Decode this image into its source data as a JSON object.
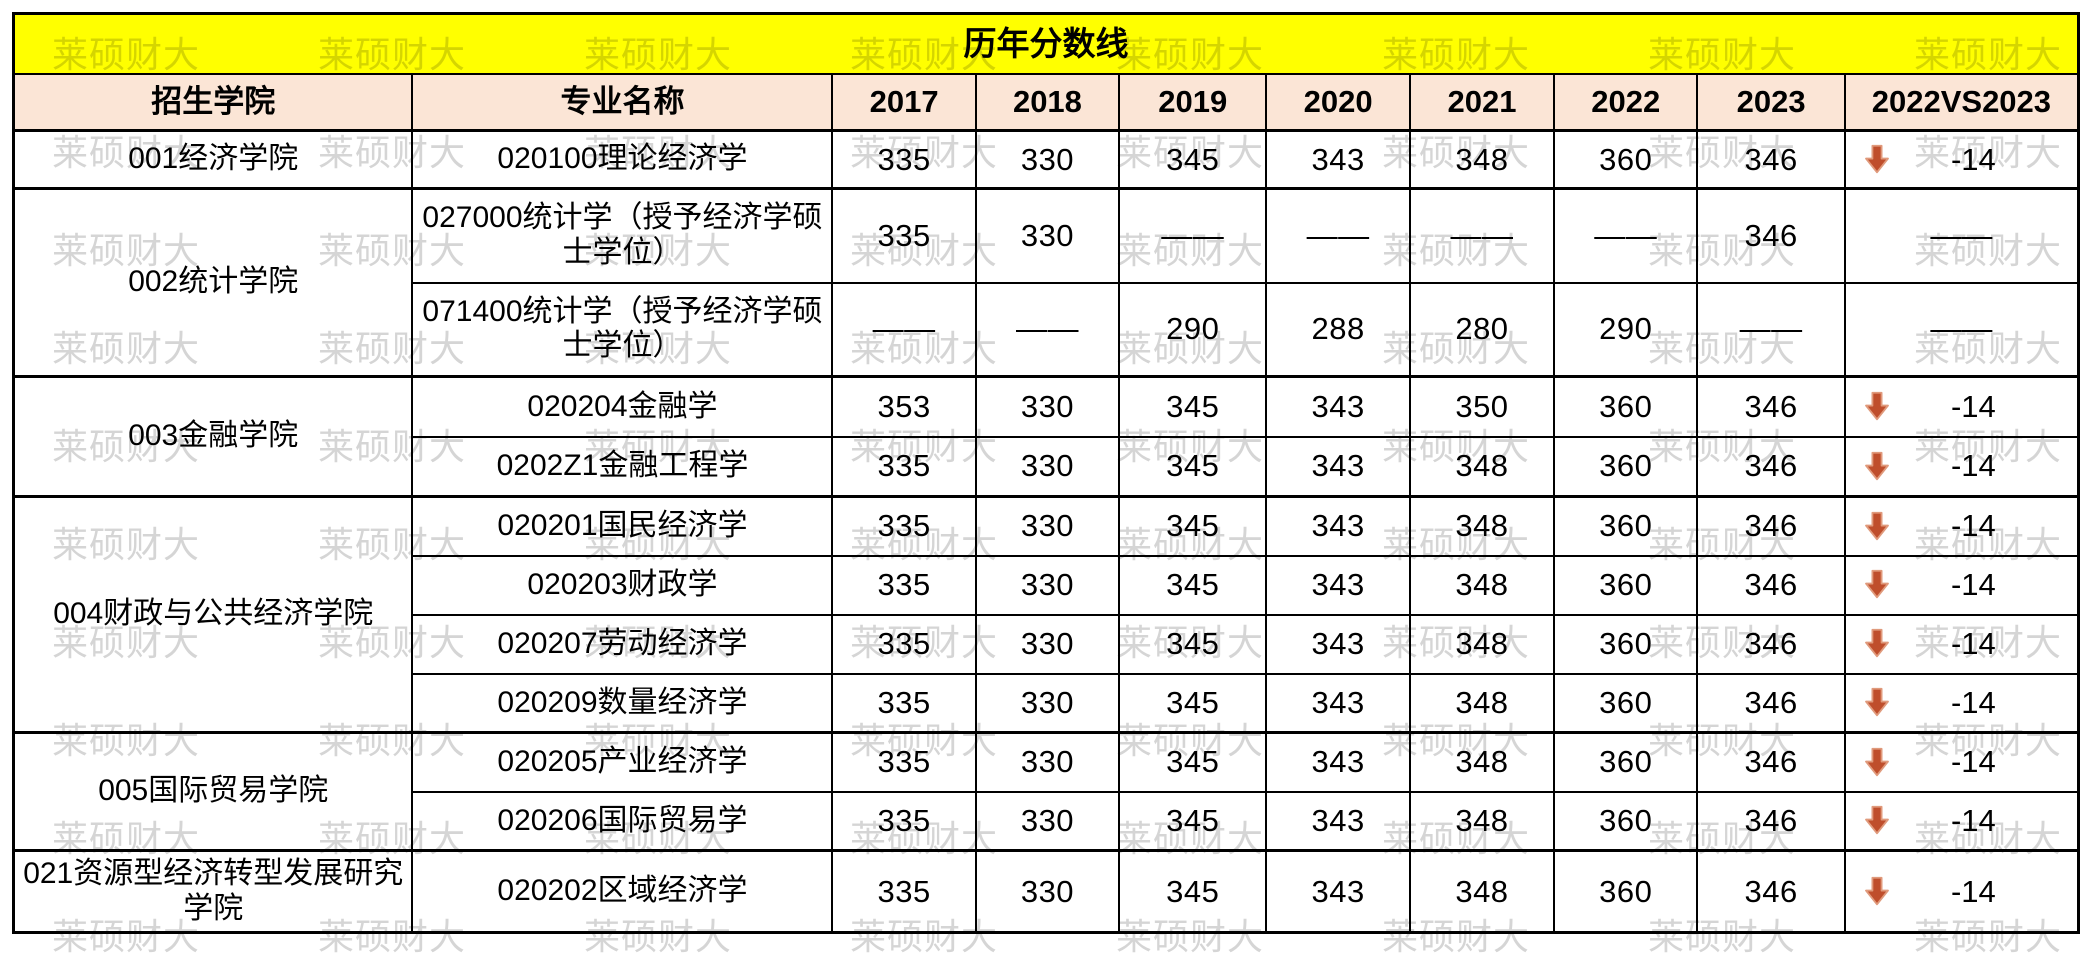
{
  "title": "历年分数线",
  "watermark_text": "莱硕财大",
  "colors": {
    "title_bg": "#ffff00",
    "header_bg": "#fbe5d6",
    "arrow_red": "#bf4e2c",
    "arrow_outline": "#e09a7c",
    "watermark_gray": "#d5d5d5",
    "border_black": "#000000"
  },
  "columns": [
    "招生学院",
    "专业名称",
    "2017",
    "2018",
    "2019",
    "2020",
    "2021",
    "2022",
    "2023",
    "2022VS2023"
  ],
  "empty_mark": "——",
  "sections": [
    {
      "college": "001经济学院",
      "majors": [
        {
          "name": "020100理论经济学",
          "scores": [
            "335",
            "330",
            "345",
            "343",
            "348",
            "360",
            "346"
          ],
          "vs_arrow": "down",
          "vs_value": "-14"
        }
      ]
    },
    {
      "college": "002统计学院",
      "majors": [
        {
          "name": "027000统计学（授予经济学硕士学位）",
          "scores": [
            "335",
            "330",
            "——",
            "——",
            "——",
            "——",
            "346"
          ],
          "vs_arrow": "",
          "vs_value": "——"
        },
        {
          "name": "071400统计学（授予经济学硕士学位）",
          "scores": [
            "——",
            "——",
            "290",
            "288",
            "280",
            "290",
            "——"
          ],
          "vs_arrow": "",
          "vs_value": "——"
        }
      ]
    },
    {
      "college": "003金融学院",
      "majors": [
        {
          "name": "020204金融学",
          "scores": [
            "353",
            "330",
            "345",
            "343",
            "350",
            "360",
            "346"
          ],
          "vs_arrow": "down",
          "vs_value": "-14"
        },
        {
          "name": "0202Z1金融工程学",
          "scores": [
            "335",
            "330",
            "345",
            "343",
            "348",
            "360",
            "346"
          ],
          "vs_arrow": "down",
          "vs_value": "-14"
        }
      ]
    },
    {
      "college": "004财政与公共经济学院",
      "majors": [
        {
          "name": "020201国民经济学",
          "scores": [
            "335",
            "330",
            "345",
            "343",
            "348",
            "360",
            "346"
          ],
          "vs_arrow": "down",
          "vs_value": "-14"
        },
        {
          "name": "020203财政学",
          "scores": [
            "335",
            "330",
            "345",
            "343",
            "348",
            "360",
            "346"
          ],
          "vs_arrow": "down",
          "vs_value": "-14"
        },
        {
          "name": "020207劳动经济学",
          "scores": [
            "335",
            "330",
            "345",
            "343",
            "348",
            "360",
            "346"
          ],
          "vs_arrow": "down",
          "vs_value": "-14"
        },
        {
          "name": "020209数量经济学",
          "scores": [
            "335",
            "330",
            "345",
            "343",
            "348",
            "360",
            "346"
          ],
          "vs_arrow": "down",
          "vs_value": "-14"
        }
      ]
    },
    {
      "college": "005国际贸易学院",
      "majors": [
        {
          "name": "020205产业经济学",
          "scores": [
            "335",
            "330",
            "345",
            "343",
            "348",
            "360",
            "346"
          ],
          "vs_arrow": "down",
          "vs_value": "-14"
        },
        {
          "name": "020206国际贸易学",
          "scores": [
            "335",
            "330",
            "345",
            "343",
            "348",
            "360",
            "346"
          ],
          "vs_arrow": "down",
          "vs_value": "-14"
        }
      ]
    },
    {
      "college": "021资源型经济转型发展研究学院",
      "majors": [
        {
          "name": "020202区域经济学",
          "scores": [
            "335",
            "330",
            "345",
            "343",
            "348",
            "360",
            "346"
          ],
          "vs_arrow": "down",
          "vs_value": "-14"
        }
      ]
    }
  ]
}
